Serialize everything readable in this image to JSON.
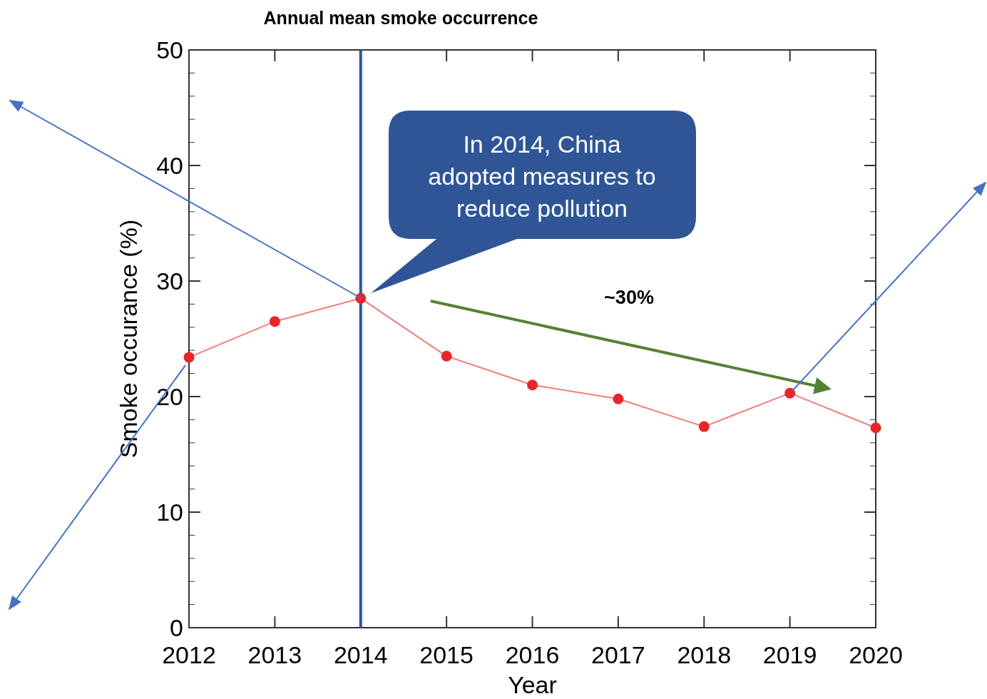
{
  "chart_data": {
    "type": "line",
    "title": "Annual mean smoke occurrence",
    "xlabel": "Year",
    "ylabel": "Smoke occurance (%)",
    "x": [
      2012,
      2013,
      2014,
      2015,
      2016,
      2017,
      2018,
      2019,
      2020
    ],
    "series": [
      {
        "color": "#e8262a",
        "values": [
          23.4,
          26.5,
          28.5,
          23.5,
          21.0,
          19.8,
          17.4,
          20.3,
          17.3
        ]
      }
    ],
    "xlim": [
      2012,
      2020
    ],
    "xticks": [
      2012,
      2013,
      2014,
      2015,
      2016,
      2017,
      2018,
      2019,
      2020
    ],
    "ylim": [
      0,
      50
    ],
    "yticks": [
      0,
      10,
      20,
      30,
      40,
      50
    ],
    "ref_lines": [
      {
        "axis": "x",
        "value": 2014,
        "color": "#2f5597"
      }
    ],
    "annotations": [
      "In 2014, China adopted measures to reduce pollution",
      "~30%"
    ],
    "marker": "circle",
    "line_style": "solid",
    "grid": false
  }
}
